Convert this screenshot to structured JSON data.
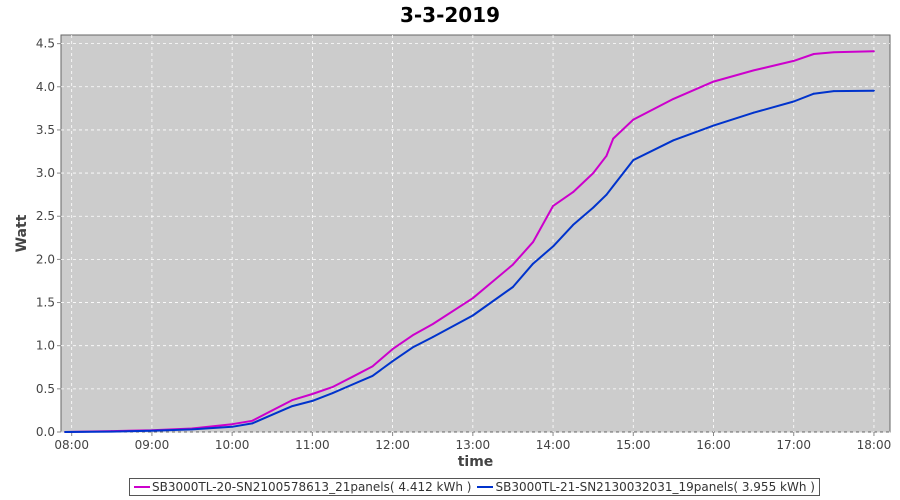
{
  "chart_data": {
    "type": "line",
    "title": "3-3-2019",
    "xlabel": "time",
    "ylabel": "Watt",
    "xlim": [
      "07:52",
      "18:12"
    ],
    "ylim": [
      0,
      4.6
    ],
    "x_ticks": [
      "08:00",
      "09:00",
      "10:00",
      "11:00",
      "12:00",
      "13:00",
      "14:00",
      "15:00",
      "16:00",
      "17:00",
      "18:00"
    ],
    "y_ticks": [
      "0.0",
      "0.5",
      "1.0",
      "1.5",
      "2.0",
      "2.5",
      "3.0",
      "3.5",
      "4.0",
      "4.5"
    ],
    "grid": true,
    "legend_placement": "bottom",
    "background": "#cccccc",
    "series": [
      {
        "name": "SB3000TL-20-SN2100578613_21panels( 4.412 kWh )",
        "color": "#cc00cc",
        "x": [
          "07:55",
          "08:30",
          "09:00",
          "09:30",
          "10:00",
          "10:15",
          "10:30",
          "10:45",
          "11:00",
          "11:15",
          "11:30",
          "11:45",
          "12:00",
          "12:15",
          "12:30",
          "13:00",
          "13:30",
          "13:45",
          "14:00",
          "14:15",
          "14:30",
          "14:40",
          "14:45",
          "15:00",
          "15:30",
          "16:00",
          "16:30",
          "17:00",
          "17:15",
          "17:30",
          "18:00"
        ],
        "y": [
          0,
          0.01,
          0.02,
          0.04,
          0.09,
          0.13,
          0.25,
          0.37,
          0.44,
          0.52,
          0.64,
          0.76,
          0.96,
          1.12,
          1.25,
          1.55,
          1.94,
          2.2,
          2.62,
          2.78,
          3.0,
          3.2,
          3.4,
          3.62,
          3.86,
          4.06,
          4.19,
          4.3,
          4.38,
          4.4,
          4.412
        ]
      },
      {
        "name": "SB3000TL-21-SN2130032031_19panels( 3.955 kWh )",
        "color": "#0033cc",
        "x": [
          "07:55",
          "08:30",
          "09:00",
          "09:30",
          "10:00",
          "10:15",
          "10:30",
          "10:45",
          "11:00",
          "11:15",
          "11:30",
          "11:45",
          "12:00",
          "12:15",
          "12:30",
          "13:00",
          "13:30",
          "13:45",
          "14:00",
          "14:15",
          "14:30",
          "14:40",
          "14:45",
          "15:00",
          "15:30",
          "16:00",
          "16:30",
          "17:00",
          "17:15",
          "17:30",
          "18:00"
        ],
        "y": [
          0,
          0.005,
          0.015,
          0.03,
          0.06,
          0.1,
          0.2,
          0.3,
          0.36,
          0.45,
          0.55,
          0.65,
          0.82,
          0.98,
          1.1,
          1.35,
          1.68,
          1.95,
          2.15,
          2.4,
          2.6,
          2.75,
          2.85,
          3.15,
          3.38,
          3.55,
          3.7,
          3.83,
          3.92,
          3.95,
          3.955
        ]
      }
    ]
  }
}
